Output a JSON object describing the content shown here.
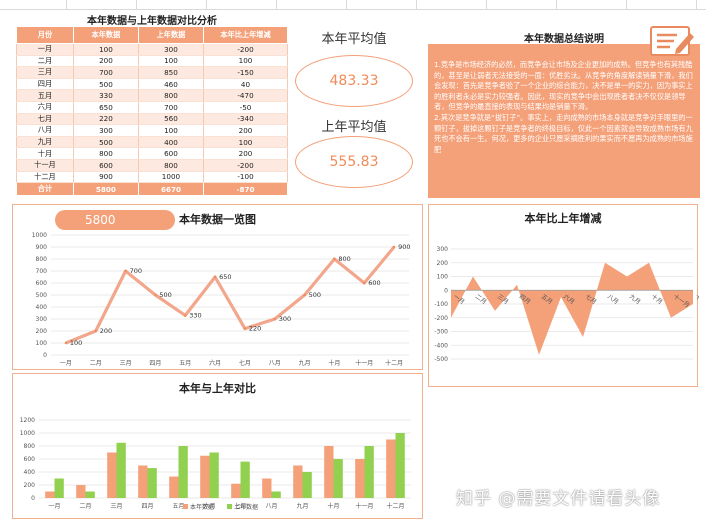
{
  "table": {
    "title": "本年数据与上年数据对比分析",
    "headers": [
      "月份",
      "本年数据",
      "上年数据",
      "本年比上年增减"
    ],
    "rows": [
      [
        "一月",
        "100",
        "300",
        "-200"
      ],
      [
        "二月",
        "200",
        "100",
        "100"
      ],
      [
        "三月",
        "700",
        "850",
        "-150"
      ],
      [
        "四月",
        "500",
        "460",
        "40"
      ],
      [
        "五月",
        "330",
        "800",
        "-470"
      ],
      [
        "六月",
        "650",
        "700",
        "-50"
      ],
      [
        "七月",
        "220",
        "560",
        "-340"
      ],
      [
        "八月",
        "300",
        "100",
        "200"
      ],
      [
        "九月",
        "500",
        "400",
        "100"
      ],
      [
        "十月",
        "800",
        "600",
        "200"
      ],
      [
        "十一月",
        "600",
        "800",
        "-200"
      ],
      [
        "十二月",
        "900",
        "1000",
        "-100"
      ]
    ],
    "total": [
      "合计",
      "5800",
      "6670",
      "-870"
    ]
  },
  "averages": {
    "this_year_label": "本年平均值",
    "this_year_value": "483.33",
    "last_year_label": "上年平均值",
    "last_year_value": "555.83"
  },
  "summary": {
    "title": "本年数据总结说明",
    "paragraphs": [
      "1.竞争是市场经济的必然，而竞争会让市场及企业更加的成熟。但竞争也有其残酷的，甚至是让弱者无法接受的一面：优胜劣汰。从竞争的角度解读销量下滑，我们会发现：首先是竞争者验了一个企业的综合能力，决不是单一的实力，因为事实上的胜利者永必是实力较强者。因此，现实的竞争中会出现胜者者决不仅仅是领导者，但竞争的最直接的表现与结果均是销量下滑。",
      "2.其次是竞争就是“拔钉子”。事实上，走向成熟的市场本身就是竞争对手眼里的一颗钉子，拔掉这颗钉子是竞争者的终极目标，仅此一个因素就会导致成熟市场有九死也不会有一生。何况，更多的企业只愿采摘胜利的果实而不愿再为成熟的市场施肥"
    ],
    "icon": "pencil-board-icon"
  },
  "badge": {
    "value": "5800"
  },
  "watermark": "知乎 @需要文件请看头像",
  "colors": {
    "accent": "#f4a079",
    "accent_dark": "#f08c59",
    "green": "#92d050",
    "line": "#f2a68c"
  },
  "chart_data": [
    {
      "type": "line",
      "title": "本年数据一览图",
      "categories": [
        "一月",
        "二月",
        "三月",
        "四月",
        "五月",
        "六月",
        "七月",
        "八月",
        "九月",
        "十月",
        "十一月",
        "十二月"
      ],
      "values": [
        100,
        200,
        700,
        500,
        330,
        650,
        220,
        300,
        500,
        800,
        600,
        900
      ],
      "ylim": [
        0,
        1000
      ],
      "yticks": [
        0,
        100,
        200,
        300,
        400,
        500,
        600,
        700,
        800,
        900,
        1000
      ],
      "data_labels": true
    },
    {
      "type": "area",
      "title": "本年比上年增减",
      "categories": [
        "一月",
        "二月",
        "三月",
        "四月",
        "五月",
        "六月",
        "七月",
        "八月",
        "九月",
        "十月",
        "十一月",
        "十二月"
      ],
      "values": [
        -200,
        100,
        -150,
        40,
        -470,
        -50,
        -340,
        200,
        100,
        200,
        -200,
        -100
      ],
      "ylim": [
        -500,
        300
      ],
      "yticks": [
        300,
        200,
        100,
        0,
        -100,
        -200,
        -300,
        -400,
        -500
      ]
    },
    {
      "type": "bar",
      "title": "本年与上年对比",
      "categories": [
        "一月",
        "二月",
        "三月",
        "四月",
        "五月",
        "六月",
        "七月",
        "八月",
        "九月",
        "十月",
        "十一月",
        "十二月"
      ],
      "series": [
        {
          "name": "本年数据",
          "values": [
            100,
            200,
            700,
            500,
            330,
            650,
            220,
            300,
            500,
            800,
            600,
            900
          ]
        },
        {
          "name": "上年数据",
          "values": [
            300,
            100,
            850,
            460,
            800,
            700,
            560,
            100,
            400,
            600,
            800,
            1000
          ]
        }
      ],
      "ylim": [
        0,
        1200
      ],
      "yticks": [
        0,
        200,
        400,
        600,
        800,
        1000,
        1200
      ],
      "legend": "bottom"
    }
  ]
}
